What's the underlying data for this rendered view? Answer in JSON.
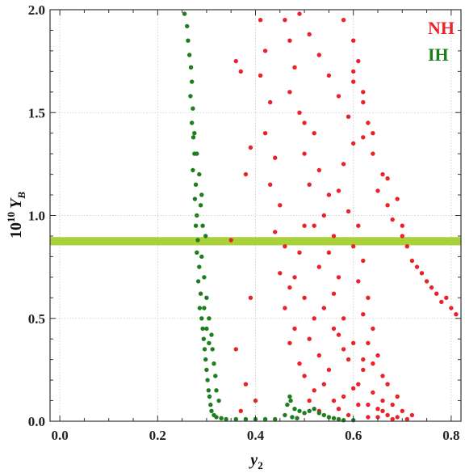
{
  "chart_data": {
    "type": "scatter",
    "xlabel": {
      "base": "y",
      "sub": "2"
    },
    "ylabel": {
      "pre": "10",
      "sup": "10",
      "var": "Y",
      "sub": "B"
    },
    "xlim": [
      -0.02,
      0.82
    ],
    "ylim": [
      0,
      2.0
    ],
    "x_ticks": [
      "0.0",
      "0.2",
      "0.4",
      "0.6",
      "0.8"
    ],
    "x_tick_values": [
      0.0,
      0.2,
      0.4,
      0.6,
      0.8
    ],
    "y_ticks": [
      "0.0",
      "0.5",
      "1.0",
      "1.5",
      "2.0"
    ],
    "y_tick_values": [
      0.0,
      0.5,
      1.0,
      1.5,
      2.0
    ],
    "grid": true,
    "legend_position": "top-right",
    "band": {
      "y_low": 0.855,
      "y_high": 0.895,
      "color": "#a8d13a"
    },
    "series": [
      {
        "name": "NH",
        "color": "#e8232a",
        "points": [
          [
            0.46,
            1.95
          ],
          [
            0.47,
            1.85
          ],
          [
            0.48,
            1.72
          ],
          [
            0.47,
            1.6
          ],
          [
            0.49,
            1.5
          ],
          [
            0.5,
            1.45
          ],
          [
            0.52,
            1.4
          ],
          [
            0.5,
            1.3
          ],
          [
            0.53,
            1.22
          ],
          [
            0.51,
            1.15
          ],
          [
            0.55,
            1.1
          ],
          [
            0.54,
            1.0
          ],
          [
            0.52,
            0.95
          ],
          [
            0.56,
            0.9
          ],
          [
            0.55,
            0.82
          ],
          [
            0.53,
            0.75
          ],
          [
            0.57,
            0.7
          ],
          [
            0.56,
            0.62
          ],
          [
            0.54,
            0.55
          ],
          [
            0.58,
            0.5
          ],
          [
            0.57,
            0.42
          ],
          [
            0.6,
            0.38
          ],
          [
            0.59,
            0.3
          ],
          [
            0.62,
            0.25
          ],
          [
            0.61,
            0.18
          ],
          [
            0.64,
            0.14
          ],
          [
            0.63,
            0.08
          ],
          [
            0.66,
            0.05
          ],
          [
            0.65,
            0.02
          ],
          [
            0.68,
            0.01
          ],
          [
            0.58,
            1.95
          ],
          [
            0.6,
            1.85
          ],
          [
            0.61,
            1.75
          ],
          [
            0.6,
            1.65
          ],
          [
            0.62,
            1.55
          ],
          [
            0.63,
            1.45
          ],
          [
            0.62,
            1.38
          ],
          [
            0.64,
            1.3
          ],
          [
            0.66,
            1.2
          ],
          [
            0.65,
            1.12
          ],
          [
            0.67,
            1.05
          ],
          [
            0.68,
            0.98
          ],
          [
            0.7,
            0.9
          ],
          [
            0.71,
            0.85
          ],
          [
            0.72,
            0.78
          ],
          [
            0.74,
            0.72
          ],
          [
            0.75,
            0.68
          ],
          [
            0.77,
            0.62
          ],
          [
            0.78,
            0.58
          ],
          [
            0.8,
            0.55
          ],
          [
            0.81,
            0.52
          ],
          [
            0.79,
            0.6
          ],
          [
            0.76,
            0.65
          ],
          [
            0.73,
            0.75
          ],
          [
            0.7,
            0.95
          ],
          [
            0.69,
            1.08
          ],
          [
            0.67,
            1.18
          ],
          [
            0.64,
            1.4
          ],
          [
            0.62,
            1.6
          ],
          [
            0.6,
            1.7
          ],
          [
            0.41,
            1.95
          ],
          [
            0.42,
            1.8
          ],
          [
            0.41,
            1.68
          ],
          [
            0.43,
            1.55
          ],
          [
            0.42,
            1.4
          ],
          [
            0.44,
            1.28
          ],
          [
            0.43,
            1.15
          ],
          [
            0.45,
            1.05
          ],
          [
            0.44,
            0.92
          ],
          [
            0.46,
            0.85
          ],
          [
            0.45,
            0.72
          ],
          [
            0.47,
            0.65
          ],
          [
            0.46,
            0.55
          ],
          [
            0.48,
            0.45
          ],
          [
            0.47,
            0.38
          ],
          [
            0.49,
            0.28
          ],
          [
            0.5,
            0.22
          ],
          [
            0.52,
            0.15
          ],
          [
            0.51,
            0.1
          ],
          [
            0.53,
            0.05
          ],
          [
            0.36,
            1.75
          ],
          [
            0.37,
            1.7
          ],
          [
            0.39,
            1.33
          ],
          [
            0.38,
            1.2
          ],
          [
            0.35,
            0.88
          ],
          [
            0.39,
            0.6
          ],
          [
            0.36,
            0.35
          ],
          [
            0.38,
            0.18
          ],
          [
            0.37,
            0.05
          ],
          [
            0.4,
            0.1
          ],
          [
            0.49,
            1.98
          ],
          [
            0.51,
            1.88
          ],
          [
            0.53,
            1.78
          ],
          [
            0.55,
            1.68
          ],
          [
            0.57,
            1.58
          ],
          [
            0.59,
            1.48
          ],
          [
            0.6,
            1.35
          ],
          [
            0.58,
            1.25
          ],
          [
            0.57,
            1.12
          ],
          [
            0.59,
            1.02
          ],
          [
            0.61,
            0.95
          ],
          [
            0.6,
            0.85
          ],
          [
            0.62,
            0.78
          ],
          [
            0.61,
            0.68
          ],
          [
            0.63,
            0.6
          ],
          [
            0.62,
            0.52
          ],
          [
            0.64,
            0.45
          ],
          [
            0.63,
            0.38
          ],
          [
            0.65,
            0.32
          ],
          [
            0.64,
            0.28
          ],
          [
            0.66,
            0.22
          ],
          [
            0.67,
            0.18
          ],
          [
            0.69,
            0.12
          ],
          [
            0.68,
            0.08
          ],
          [
            0.7,
            0.05
          ],
          [
            0.72,
            0.03
          ],
          [
            0.71,
            0.01
          ],
          [
            0.69,
            0.02
          ],
          [
            0.67,
            0.03
          ],
          [
            0.66,
            0.1
          ],
          [
            0.5,
            0.95
          ],
          [
            0.49,
            0.82
          ],
          [
            0.48,
            0.7
          ],
          [
            0.5,
            0.6
          ],
          [
            0.52,
            0.5
          ],
          [
            0.51,
            0.4
          ],
          [
            0.53,
            0.32
          ],
          [
            0.55,
            0.25
          ],
          [
            0.54,
            0.18
          ],
          [
            0.56,
            0.1
          ],
          [
            0.57,
            0.06
          ],
          [
            0.59,
            0.03
          ],
          [
            0.58,
            0.12
          ],
          [
            0.6,
            0.16
          ],
          [
            0.61,
            0.08
          ],
          [
            0.63,
            0.02
          ],
          [
            0.65,
            0.06
          ],
          [
            0.62,
            0.3
          ],
          [
            0.58,
            0.35
          ],
          [
            0.56,
            0.45
          ]
        ]
      },
      {
        "name": "IH",
        "color": "#1e7e1e",
        "points": [
          [
            0.255,
            1.98
          ],
          [
            0.26,
            1.92
          ],
          [
            0.262,
            1.85
          ],
          [
            0.265,
            1.78
          ],
          [
            0.268,
            1.72
          ],
          [
            0.27,
            1.65
          ],
          [
            0.267,
            1.58
          ],
          [
            0.272,
            1.52
          ],
          [
            0.27,
            1.45
          ],
          [
            0.273,
            1.38
          ],
          [
            0.275,
            1.3
          ],
          [
            0.272,
            1.22
          ],
          [
            0.278,
            1.15
          ],
          [
            0.276,
            1.08
          ],
          [
            0.28,
            1.0
          ],
          [
            0.278,
            0.95
          ],
          [
            0.282,
            0.88
          ],
          [
            0.28,
            0.82
          ],
          [
            0.285,
            0.75
          ],
          [
            0.283,
            0.68
          ],
          [
            0.288,
            0.62
          ],
          [
            0.286,
            0.55
          ],
          [
            0.29,
            0.5
          ],
          [
            0.292,
            0.45
          ],
          [
            0.294,
            0.4
          ],
          [
            0.296,
            0.35
          ],
          [
            0.298,
            0.3
          ],
          [
            0.3,
            0.25
          ],
          [
            0.302,
            0.2
          ],
          [
            0.304,
            0.15
          ],
          [
            0.306,
            0.12
          ],
          [
            0.308,
            0.08
          ],
          [
            0.31,
            0.05
          ],
          [
            0.315,
            0.03
          ],
          [
            0.32,
            0.02
          ],
          [
            0.33,
            0.015
          ],
          [
            0.34,
            0.01
          ],
          [
            0.36,
            0.01
          ],
          [
            0.38,
            0.01
          ],
          [
            0.4,
            0.01
          ],
          [
            0.42,
            0.01
          ],
          [
            0.44,
            0.01
          ],
          [
            0.46,
            0.03
          ],
          [
            0.465,
            0.08
          ],
          [
            0.47,
            0.12
          ],
          [
            0.472,
            0.1
          ],
          [
            0.48,
            0.06
          ],
          [
            0.49,
            0.05
          ],
          [
            0.5,
            0.04
          ],
          [
            0.51,
            0.05
          ],
          [
            0.52,
            0.06
          ],
          [
            0.53,
            0.04
          ],
          [
            0.54,
            0.03
          ],
          [
            0.55,
            0.02
          ],
          [
            0.56,
            0.015
          ],
          [
            0.57,
            0.01
          ],
          [
            0.58,
            0.005
          ],
          [
            0.6,
            0.005
          ],
          [
            0.475,
            0.02
          ],
          [
            0.485,
            0.015
          ],
          [
            0.3,
            0.6
          ],
          [
            0.305,
            0.5
          ],
          [
            0.31,
            0.42
          ],
          [
            0.312,
            0.35
          ],
          [
            0.315,
            0.28
          ],
          [
            0.318,
            0.22
          ],
          [
            0.32,
            0.15
          ],
          [
            0.325,
            0.1
          ],
          [
            0.295,
            0.7
          ],
          [
            0.29,
            0.8
          ],
          [
            0.275,
            1.4
          ],
          [
            0.28,
            1.3
          ],
          [
            0.285,
            1.2
          ],
          [
            0.29,
            1.1
          ],
          [
            0.288,
            1.05
          ],
          [
            0.292,
            0.95
          ],
          [
            0.298,
            0.9
          ],
          [
            0.295,
            0.55
          ],
          [
            0.3,
            0.45
          ],
          [
            0.305,
            0.38
          ]
        ]
      }
    ]
  }
}
